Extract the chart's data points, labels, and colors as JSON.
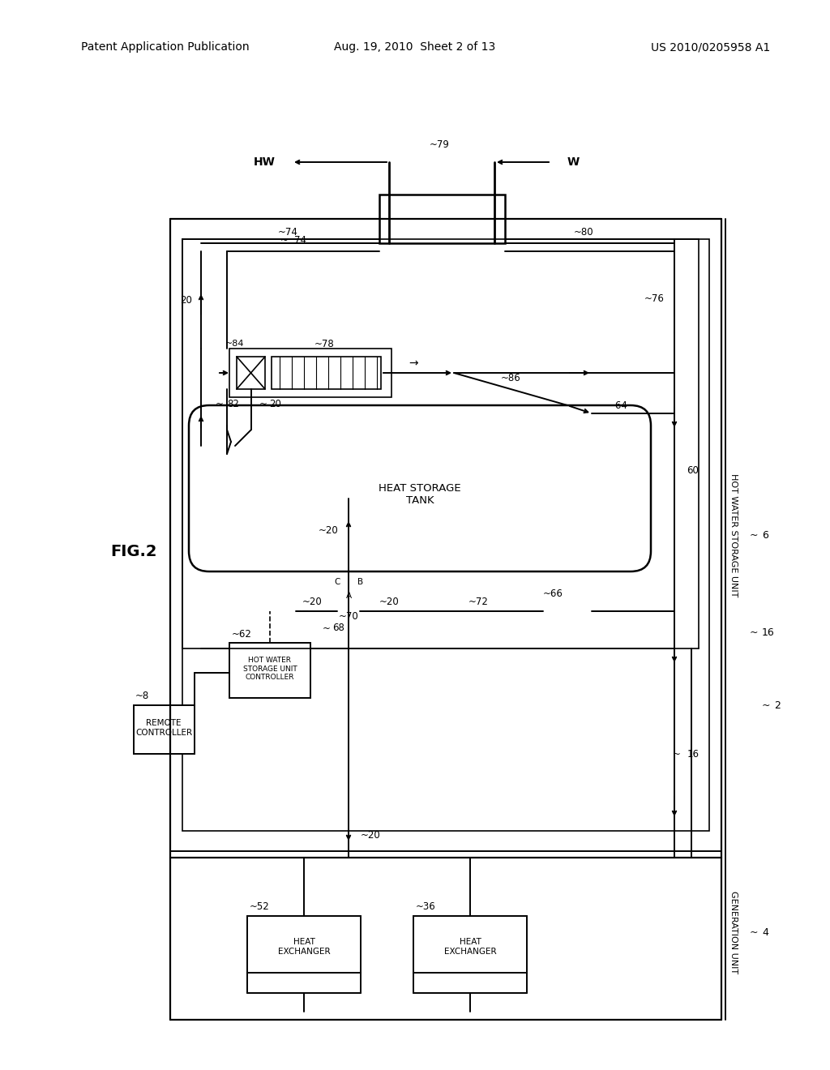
{
  "bg_color": "#ffffff",
  "header_left": "Patent Application Publication",
  "header_mid": "Aug. 19, 2010  Sheet 2 of 13",
  "header_right": "US 2010/0205958 A1",
  "fig_label": "FIG.2"
}
